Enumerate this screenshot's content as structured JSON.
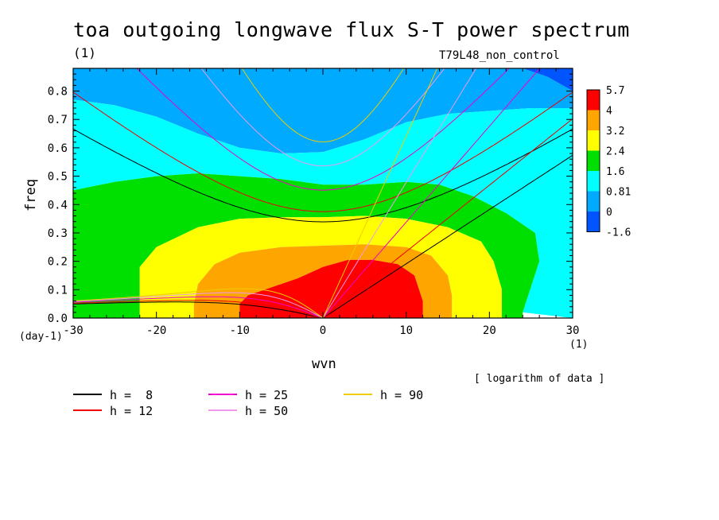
{
  "title": "toa outgoing longwave flux S-T power spectrum",
  "title_unit": "(1)",
  "experiment": "T79L48_non_control",
  "note": "[ logarithm of data ]",
  "chart_data": {
    "type": "heatmap",
    "title": "toa outgoing longwave flux S-T power spectrum",
    "xlabel": "wvn",
    "ylabel": "freq",
    "x_unit": "(1)",
    "y_unit": "(day-1)",
    "xlim": [
      -30,
      30
    ],
    "ylim": [
      0,
      0.88
    ],
    "xticks": [
      -30,
      -20,
      -10,
      0,
      10,
      20,
      30
    ],
    "yticks": [
      0.0,
      0.1,
      0.2,
      0.3,
      0.4,
      0.5,
      0.6,
      0.7,
      0.8
    ],
    "colorbar": {
      "levels": [
        "5.7",
        "4",
        "3.2",
        "2.4",
        "1.6",
        "0.81",
        "0",
        "-1.6"
      ],
      "colors": [
        "#ff0000",
        "#ffa500",
        "#ffff00",
        "#00e000",
        "#00ffff",
        "#00aaff",
        "#0055ff"
      ]
    },
    "contour_regions": [
      {
        "level": "-1.6 to 0",
        "color": "#0055ff",
        "points": [
          [
            24,
            0.88
          ],
          [
            30,
            0.88
          ],
          [
            30,
            0.8
          ],
          [
            27,
            0.85
          ]
        ]
      },
      {
        "level": "0 to 0.81",
        "color": "#00aaff",
        "points": [
          [
            -30,
            0.88
          ],
          [
            24,
            0.88
          ],
          [
            27,
            0.85
          ],
          [
            30,
            0.8
          ],
          [
            30,
            0.74
          ],
          [
            25,
            0.74
          ],
          [
            20,
            0.73
          ],
          [
            15,
            0.72
          ],
          [
            10,
            0.69
          ],
          [
            5,
            0.63
          ],
          [
            0,
            0.585
          ],
          [
            -5,
            0.58
          ],
          [
            -10,
            0.6
          ],
          [
            -15,
            0.65
          ],
          [
            -20,
            0.71
          ],
          [
            -25,
            0.75
          ],
          [
            -30,
            0.77
          ]
        ]
      },
      {
        "level": "0.81 to 1.6",
        "color": "#00ffff",
        "points": [
          [
            -30,
            0.77
          ],
          [
            -25,
            0.75
          ],
          [
            -20,
            0.71
          ],
          [
            -15,
            0.65
          ],
          [
            -10,
            0.6
          ],
          [
            -5,
            0.58
          ],
          [
            0,
            0.585
          ],
          [
            5,
            0.63
          ],
          [
            10,
            0.69
          ],
          [
            15,
            0.72
          ],
          [
            20,
            0.73
          ],
          [
            25,
            0.74
          ],
          [
            30,
            0.74
          ],
          [
            30,
            0.0
          ],
          [
            24,
            0.02
          ],
          [
            26,
            0.2
          ],
          [
            25.5,
            0.3
          ],
          [
            22,
            0.37
          ],
          [
            18,
            0.43
          ],
          [
            14,
            0.47
          ],
          [
            10,
            0.48
          ],
          [
            5,
            0.47
          ],
          [
            0,
            0.47
          ],
          [
            -5,
            0.49
          ],
          [
            -10,
            0.5
          ],
          [
            -15,
            0.51
          ],
          [
            -20,
            0.5
          ],
          [
            -25,
            0.48
          ],
          [
            -30,
            0.45
          ]
        ]
      },
      {
        "level": "1.6 to 2.4",
        "color": "#00e000",
        "points": [
          [
            -30,
            0.45
          ],
          [
            -25,
            0.48
          ],
          [
            -20,
            0.5
          ],
          [
            -15,
            0.51
          ],
          [
            -10,
            0.5
          ],
          [
            -5,
            0.49
          ],
          [
            0,
            0.47
          ],
          [
            5,
            0.47
          ],
          [
            10,
            0.48
          ],
          [
            14,
            0.47
          ],
          [
            18,
            0.43
          ],
          [
            22,
            0.37
          ],
          [
            25.5,
            0.3
          ],
          [
            26,
            0.2
          ],
          [
            24,
            0.02
          ],
          [
            24,
            0.0
          ],
          [
            21.5,
            0.0
          ],
          [
            21.5,
            0.1
          ],
          [
            20.5,
            0.2
          ],
          [
            19,
            0.27
          ],
          [
            15,
            0.32
          ],
          [
            10,
            0.35
          ],
          [
            5,
            0.36
          ],
          [
            0,
            0.355
          ],
          [
            -5,
            0.355
          ],
          [
            -10,
            0.35
          ],
          [
            -15,
            0.32
          ],
          [
            -20,
            0.25
          ],
          [
            -22,
            0.18
          ],
          [
            -22,
            0.0
          ],
          [
            -30,
            0.0
          ]
        ]
      },
      {
        "level": "2.4 to 3.2",
        "color": "#ffff00",
        "points": [
          [
            -22,
            0.0
          ],
          [
            -22,
            0.18
          ],
          [
            -20,
            0.25
          ],
          [
            -15,
            0.32
          ],
          [
            -10,
            0.35
          ],
          [
            -5,
            0.355
          ],
          [
            0,
            0.355
          ],
          [
            5,
            0.36
          ],
          [
            10,
            0.35
          ],
          [
            15,
            0.32
          ],
          [
            19,
            0.27
          ],
          [
            20.5,
            0.2
          ],
          [
            21.5,
            0.1
          ],
          [
            21.5,
            0.0
          ],
          [
            15.5,
            0.0
          ],
          [
            15.5,
            0.08
          ],
          [
            15,
            0.15
          ],
          [
            13,
            0.22
          ],
          [
            10,
            0.25
          ],
          [
            5,
            0.26
          ],
          [
            0,
            0.255
          ],
          [
            -5,
            0.25
          ],
          [
            -10,
            0.23
          ],
          [
            -13,
            0.19
          ],
          [
            -15,
            0.12
          ],
          [
            -15.5,
            0.05
          ],
          [
            -15.5,
            0.0
          ]
        ]
      },
      {
        "level": "3.2 to 4",
        "color": "#ffa500",
        "points": [
          [
            -15.5,
            0.0
          ],
          [
            -15.5,
            0.05
          ],
          [
            -15,
            0.12
          ],
          [
            -13,
            0.19
          ],
          [
            -10,
            0.23
          ],
          [
            -5,
            0.25
          ],
          [
            0,
            0.255
          ],
          [
            5,
            0.26
          ],
          [
            10,
            0.25
          ],
          [
            13,
            0.22
          ],
          [
            15,
            0.15
          ],
          [
            15.5,
            0.08
          ],
          [
            15.5,
            0.0
          ],
          [
            12,
            0.0
          ],
          [
            12,
            0.06
          ],
          [
            11,
            0.15
          ],
          [
            9,
            0.19
          ],
          [
            6,
            0.205
          ],
          [
            3,
            0.205
          ],
          [
            0,
            0.18
          ],
          [
            -3,
            0.14
          ],
          [
            -6,
            0.11
          ],
          [
            -9,
            0.08
          ],
          [
            -10,
            0.05
          ],
          [
            -10,
            0.0
          ]
        ]
      },
      {
        "level": "4 to 5.7",
        "color": "#ff0000",
        "points": [
          [
            -10,
            0.0
          ],
          [
            -10,
            0.05
          ],
          [
            -9,
            0.08
          ],
          [
            -6,
            0.11
          ],
          [
            -3,
            0.14
          ],
          [
            0,
            0.18
          ],
          [
            3,
            0.205
          ],
          [
            6,
            0.205
          ],
          [
            9,
            0.19
          ],
          [
            11,
            0.15
          ],
          [
            12,
            0.06
          ],
          [
            12,
            0.0
          ]
        ]
      }
    ],
    "series": [
      {
        "name": "h = 8",
        "h": 8,
        "color": "#000000"
      },
      {
        "name": "h = 12",
        "h": 12,
        "color": "#ee0000"
      },
      {
        "name": "h = 25",
        "h": 25,
        "color": "#ee00cc"
      },
      {
        "name": "h = 50",
        "h": 50,
        "color": "#ee99ee"
      },
      {
        "name": "h = 90",
        "h": 90,
        "color": "#eecc00"
      }
    ],
    "dispersion_curves": [
      "kelvin",
      "rossby n=1",
      "inertia-gravity n=1"
    ]
  },
  "legend": [
    {
      "label": "h =  8",
      "color": "#000000"
    },
    {
      "label": "h = 12",
      "color": "#ee0000"
    },
    {
      "label": "h = 25",
      "color": "#ee00cc"
    },
    {
      "label": "h = 50",
      "color": "#ee99ee"
    },
    {
      "label": "h = 90",
      "color": "#eecc00"
    }
  ]
}
